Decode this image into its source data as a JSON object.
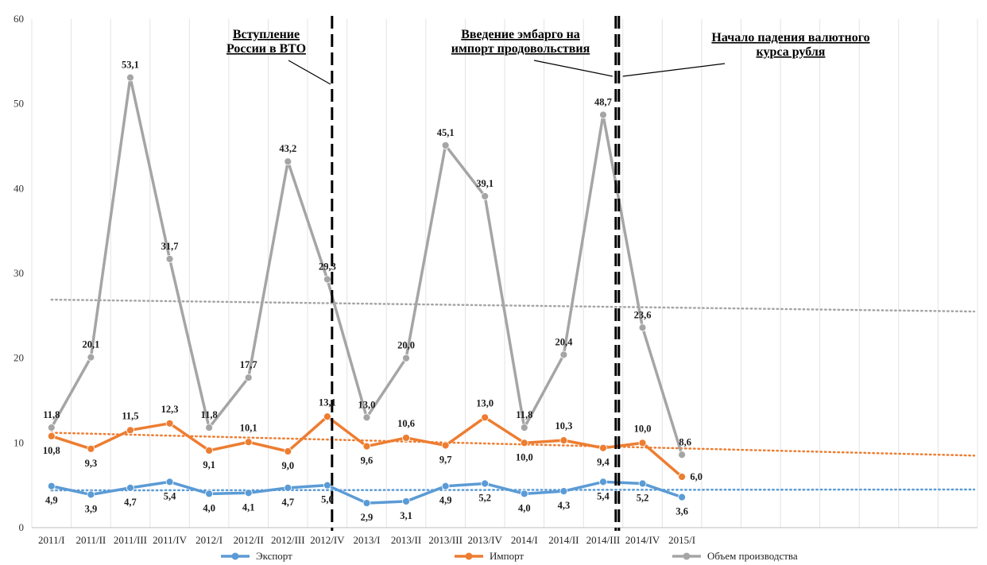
{
  "chart_data": {
    "type": "line",
    "categories": [
      "2011/I",
      "2011/II",
      "2011/III",
      "2011/IV",
      "2012/I",
      "2012/II",
      "2012/III",
      "2012/IV",
      "2013/I",
      "2013/II",
      "2013/III",
      "2013/IV",
      "2014/I",
      "2014/II",
      "2014/III",
      "2014/IV",
      "2015/I"
    ],
    "extra_category_slots": 7,
    "ylim": [
      0,
      60
    ],
    "yticks": [
      0,
      10,
      20,
      30,
      40,
      50,
      60
    ],
    "grid": "vertical",
    "legend_position": "bottom",
    "series": [
      {
        "name": "Экспорт",
        "color": "#5b9bd5",
        "values": [
          4.9,
          3.9,
          4.7,
          5.4,
          4.0,
          4.1,
          4.7,
          5.0,
          2.9,
          3.1,
          4.9,
          5.2,
          4.0,
          4.3,
          5.4,
          5.2,
          3.6
        ],
        "labels": [
          "4,9",
          "3,9",
          "4,7",
          "5,4",
          "4,0",
          "4,1",
          "4,7",
          "5,0",
          "2,9",
          "3,1",
          "4,9",
          "5,2",
          "4,0",
          "4,3",
          "5,4",
          "5,2",
          "3,6"
        ],
        "trendline": [
          4.4,
          4.5
        ]
      },
      {
        "name": "Импорт",
        "color": "#ed7d31",
        "values": [
          10.8,
          9.3,
          11.5,
          12.3,
          9.1,
          10.1,
          9.0,
          13.1,
          9.6,
          10.6,
          9.7,
          13.0,
          10.0,
          10.3,
          9.4,
          10.0,
          6.0
        ],
        "labels": [
          "10,8",
          "9,3",
          "11,5",
          "12,3",
          "9,1",
          "10,1",
          "9,0",
          "13,1",
          "9,6",
          "10,6",
          "9,7",
          "13,0",
          "10,0",
          "10,3",
          "9,4",
          "10,0",
          "6,0"
        ],
        "trendline": [
          11.2,
          8.5
        ]
      },
      {
        "name": "Объем производства",
        "color": "#a5a5a5",
        "values": [
          11.8,
          20.1,
          53.1,
          31.7,
          11.8,
          17.7,
          43.2,
          29.3,
          13.0,
          20.0,
          45.1,
          39.1,
          11.8,
          20.4,
          48.7,
          23.6,
          8.6
        ],
        "labels": [
          "11,8",
          "20,1",
          "53,1",
          "31,7",
          "11,8",
          "17,7",
          "43,2",
          "29,3",
          "13,0",
          "20,0",
          "45,1",
          "39,1",
          "11,8",
          "20,4",
          "48,7",
          "23,6",
          "8,6"
        ],
        "trendline": [
          26.9,
          25.5
        ]
      }
    ],
    "events": [
      {
        "text": [
          "Вступление",
          "России в ВТО"
        ],
        "after_category": "2012/IV"
      },
      {
        "text": [
          "Введение эмбарго на",
          "импорт продовольствия"
        ],
        "after_category": "2014/III"
      },
      {
        "text": [
          "Начало падения валютного",
          "курса рубля"
        ],
        "after_category": "2014/IV"
      }
    ]
  }
}
